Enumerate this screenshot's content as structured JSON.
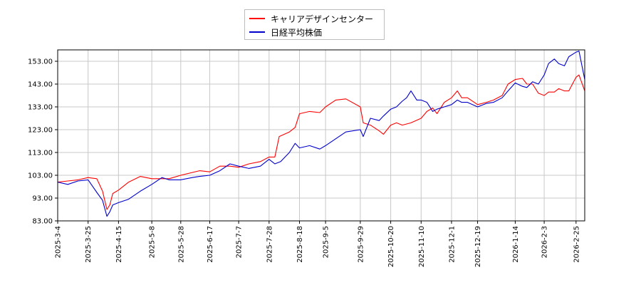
{
  "chart_data": {
    "type": "line",
    "title": "",
    "xlabel": "",
    "ylabel": "",
    "ylim": [
      83.0,
      158.0
    ],
    "y_ticks": [
      "83.00",
      "93.00",
      "103.00",
      "113.00",
      "123.00",
      "133.00",
      "143.00",
      "153.00"
    ],
    "x_ticks": [
      "2025-3-4",
      "2025-3-25",
      "2025-4-15",
      "2025-5-8",
      "2025-5-28",
      "2025-6-17",
      "2025-7-7",
      "2025-7-28",
      "2025-8-18",
      "2025-9-5",
      "2025-9-29",
      "2025-10-20",
      "2025-11-10",
      "2025-12-1",
      "2025-12-19",
      "2026-1-14",
      "2026-2-3",
      "2026-2-25"
    ],
    "grid": true,
    "legend_position": "top-center",
    "series": [
      {
        "name": "キャリアデザインセンター",
        "color": "#ff0000",
        "points": [
          [
            "2025-03-04",
            100.0
          ],
          [
            "2025-03-11",
            100.5
          ],
          [
            "2025-03-18",
            101.0
          ],
          [
            "2025-03-25",
            102.0
          ],
          [
            "2025-03-31",
            101.5
          ],
          [
            "2025-04-04",
            96.0
          ],
          [
            "2025-04-07",
            88.0
          ],
          [
            "2025-04-09",
            90.0
          ],
          [
            "2025-04-11",
            95.0
          ],
          [
            "2025-04-15",
            96.5
          ],
          [
            "2025-04-22",
            100.0
          ],
          [
            "2025-04-30",
            102.5
          ],
          [
            "2025-05-08",
            101.5
          ],
          [
            "2025-05-20",
            101.5
          ],
          [
            "2025-05-28",
            103.0
          ],
          [
            "2025-06-10",
            105.0
          ],
          [
            "2025-06-17",
            104.5
          ],
          [
            "2025-06-24",
            107.0
          ],
          [
            "2025-07-01",
            107.0
          ],
          [
            "2025-07-07",
            106.5
          ],
          [
            "2025-07-14",
            108.0
          ],
          [
            "2025-07-22",
            109.0
          ],
          [
            "2025-07-28",
            111.0
          ],
          [
            "2025-08-01",
            111.0
          ],
          [
            "2025-08-04",
            120.0
          ],
          [
            "2025-08-11",
            122.0
          ],
          [
            "2025-08-15",
            124.0
          ],
          [
            "2025-08-18",
            130.0
          ],
          [
            "2025-08-25",
            131.0
          ],
          [
            "2025-09-01",
            130.5
          ],
          [
            "2025-09-05",
            133.0
          ],
          [
            "2025-09-12",
            136.0
          ],
          [
            "2025-09-19",
            136.5
          ],
          [
            "2025-09-29",
            133.0
          ],
          [
            "2025-10-01",
            126.0
          ],
          [
            "2025-10-06",
            125.0
          ],
          [
            "2025-10-12",
            122.5
          ],
          [
            "2025-10-15",
            121.0
          ],
          [
            "2025-10-20",
            125.0
          ],
          [
            "2025-10-24",
            126.0
          ],
          [
            "2025-10-28",
            125.0
          ],
          [
            "2025-11-03",
            126.0
          ],
          [
            "2025-11-10",
            128.0
          ],
          [
            "2025-11-14",
            131.0
          ],
          [
            "2025-11-18",
            132.5
          ],
          [
            "2025-11-21",
            130.0
          ],
          [
            "2025-11-26",
            135.0
          ],
          [
            "2025-12-01",
            137.0
          ],
          [
            "2025-12-05",
            140.0
          ],
          [
            "2025-12-08",
            137.0
          ],
          [
            "2025-12-12",
            137.0
          ],
          [
            "2025-12-19",
            134.0
          ],
          [
            "2025-12-25",
            135.0
          ],
          [
            "2025-12-30",
            136.0
          ],
          [
            "2026-01-05",
            138.0
          ],
          [
            "2026-01-09",
            143.0
          ],
          [
            "2026-01-14",
            145.0
          ],
          [
            "2026-01-19",
            145.5
          ],
          [
            "2026-01-22",
            143.0
          ],
          [
            "2026-01-26",
            143.0
          ],
          [
            "2026-01-30",
            139.0
          ],
          [
            "2026-02-03",
            138.0
          ],
          [
            "2026-02-06",
            139.5
          ],
          [
            "2026-02-10",
            139.5
          ],
          [
            "2026-02-13",
            141.0
          ],
          [
            "2026-02-17",
            140.0
          ],
          [
            "2026-02-20",
            140.0
          ],
          [
            "2026-02-25",
            146.0
          ],
          [
            "2026-02-27",
            147.0
          ],
          [
            "2026-03-03",
            140.0
          ]
        ]
      },
      {
        "name": "日経平均株価",
        "color": "#0000cc",
        "points": [
          [
            "2025-03-04",
            100.0
          ],
          [
            "2025-03-11",
            99.0
          ],
          [
            "2025-03-18",
            100.5
          ],
          [
            "2025-03-25",
            101.0
          ],
          [
            "2025-03-31",
            95.5
          ],
          [
            "2025-04-04",
            92.0
          ],
          [
            "2025-04-07",
            85.0
          ],
          [
            "2025-04-09",
            87.0
          ],
          [
            "2025-04-11",
            90.0
          ],
          [
            "2025-04-15",
            91.0
          ],
          [
            "2025-04-22",
            92.5
          ],
          [
            "2025-04-30",
            96.0
          ],
          [
            "2025-05-08",
            99.0
          ],
          [
            "2025-05-15",
            102.0
          ],
          [
            "2025-05-20",
            101.0
          ],
          [
            "2025-05-28",
            101.0
          ],
          [
            "2025-06-05",
            102.0
          ],
          [
            "2025-06-10",
            102.5
          ],
          [
            "2025-06-17",
            103.0
          ],
          [
            "2025-06-24",
            105.0
          ],
          [
            "2025-07-01",
            108.0
          ],
          [
            "2025-07-07",
            107.0
          ],
          [
            "2025-07-14",
            106.0
          ],
          [
            "2025-07-22",
            107.0
          ],
          [
            "2025-07-28",
            110.0
          ],
          [
            "2025-08-01",
            108.0
          ],
          [
            "2025-08-05",
            109.0
          ],
          [
            "2025-08-11",
            113.0
          ],
          [
            "2025-08-15",
            117.0
          ],
          [
            "2025-08-18",
            115.0
          ],
          [
            "2025-08-25",
            116.0
          ],
          [
            "2025-09-01",
            114.5
          ],
          [
            "2025-09-05",
            116.0
          ],
          [
            "2025-09-12",
            119.0
          ],
          [
            "2025-09-19",
            122.0
          ],
          [
            "2025-09-29",
            123.0
          ],
          [
            "2025-10-01",
            120.0
          ],
          [
            "2025-10-06",
            128.0
          ],
          [
            "2025-10-12",
            127.0
          ],
          [
            "2025-10-15",
            129.0
          ],
          [
            "2025-10-20",
            132.0
          ],
          [
            "2025-10-24",
            133.0
          ],
          [
            "2025-10-28",
            135.5
          ],
          [
            "2025-10-31",
            137.0
          ],
          [
            "2025-11-03",
            140.0
          ],
          [
            "2025-11-07",
            136.0
          ],
          [
            "2025-11-10",
            136.0
          ],
          [
            "2025-11-14",
            135.0
          ],
          [
            "2025-11-18",
            131.0
          ],
          [
            "2025-11-21",
            132.0
          ],
          [
            "2025-11-26",
            133.0
          ],
          [
            "2025-12-01",
            134.0
          ],
          [
            "2025-12-05",
            136.0
          ],
          [
            "2025-12-08",
            135.0
          ],
          [
            "2025-12-12",
            135.0
          ],
          [
            "2025-12-19",
            133.0
          ],
          [
            "2025-12-25",
            134.5
          ],
          [
            "2025-12-30",
            135.0
          ],
          [
            "2026-01-05",
            137.0
          ],
          [
            "2026-01-09",
            140.0
          ],
          [
            "2026-01-14",
            143.5
          ],
          [
            "2026-01-19",
            142.0
          ],
          [
            "2026-01-22",
            141.5
          ],
          [
            "2026-01-26",
            144.0
          ],
          [
            "2026-01-30",
            143.0
          ],
          [
            "2026-02-03",
            147.0
          ],
          [
            "2026-02-06",
            152.0
          ],
          [
            "2026-02-10",
            154.0
          ],
          [
            "2026-02-13",
            152.0
          ],
          [
            "2026-02-17",
            151.0
          ],
          [
            "2026-02-20",
            155.0
          ],
          [
            "2026-02-25",
            157.0
          ],
          [
            "2026-02-27",
            157.5
          ],
          [
            "2026-03-03",
            145.0
          ]
        ]
      }
    ]
  }
}
